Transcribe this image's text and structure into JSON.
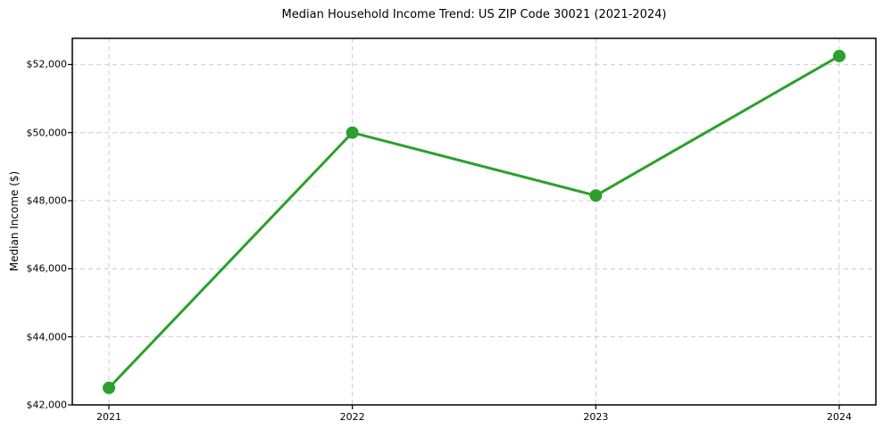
{
  "chart_data": {
    "type": "line",
    "title": "Median Household Income Trend: US ZIP Code 30021 (2021-2024)",
    "xlabel": "",
    "ylabel": "Median Income ($)",
    "categories": [
      "2021",
      "2022",
      "2023",
      "2024"
    ],
    "values": [
      42500,
      50000,
      48150,
      52250
    ],
    "yticks": [
      42000,
      44000,
      46000,
      48000,
      50000,
      52000
    ],
    "ytick_labels": [
      "$42,000",
      "$44,000",
      "$46,000",
      "$48,000",
      "$50,000",
      "$52,000"
    ],
    "ylim": [
      42000,
      52770
    ],
    "grid": true,
    "grid_style": "dashed",
    "legend": false,
    "line_color": "#2ca02c",
    "marker": "circle",
    "marker_color": "#2ca02c",
    "grid_color": "#cccccc",
    "axis_color": "#000000",
    "background_color": "#ffffff"
  }
}
